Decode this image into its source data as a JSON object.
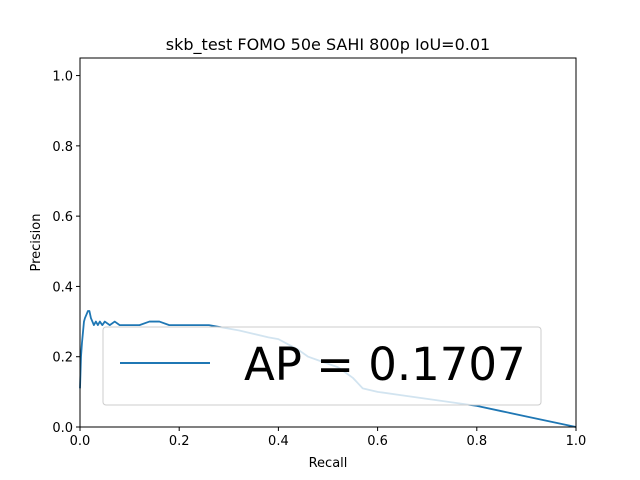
{
  "chart_data": {
    "type": "line",
    "title": "skb_test FOMO 50e SAHI 800p IoU=0.01",
    "xlabel": "Recall",
    "ylabel": "Precision",
    "xlim": [
      0.0,
      1.0
    ],
    "ylim": [
      0.0,
      1.05
    ],
    "x_ticks": [
      "0.0",
      "0.2",
      "0.4",
      "0.6",
      "0.8",
      "1.0"
    ],
    "y_ticks": [
      "0.0",
      "0.2",
      "0.4",
      "0.6",
      "0.8",
      "1.0"
    ],
    "grid": false,
    "legend_position": "lower right",
    "series": [
      {
        "name": "AP = 0.1707",
        "color": "#1f77b4",
        "x": [
          0.0,
          0.002,
          0.004,
          0.006,
          0.008,
          0.01,
          0.013,
          0.016,
          0.019,
          0.022,
          0.025,
          0.028,
          0.032,
          0.036,
          0.04,
          0.045,
          0.05,
          0.06,
          0.07,
          0.08,
          0.09,
          0.1,
          0.12,
          0.14,
          0.15,
          0.16,
          0.18,
          0.2,
          0.22,
          0.24,
          0.26,
          0.28,
          0.3,
          0.32,
          0.35,
          0.38,
          0.4,
          0.42,
          0.44,
          0.46,
          0.48,
          0.5,
          0.52,
          0.54,
          0.55,
          0.56,
          0.57,
          0.6,
          0.65,
          0.7,
          0.75,
          0.8,
          0.85,
          0.9,
          0.95,
          1.0
        ],
        "y": [
          0.11,
          0.2,
          0.24,
          0.27,
          0.3,
          0.31,
          0.32,
          0.33,
          0.33,
          0.31,
          0.3,
          0.29,
          0.3,
          0.29,
          0.3,
          0.29,
          0.3,
          0.29,
          0.3,
          0.29,
          0.29,
          0.29,
          0.29,
          0.3,
          0.3,
          0.3,
          0.29,
          0.29,
          0.29,
          0.29,
          0.29,
          0.285,
          0.28,
          0.275,
          0.265,
          0.255,
          0.25,
          0.235,
          0.22,
          0.2,
          0.19,
          0.18,
          0.17,
          0.15,
          0.14,
          0.125,
          0.11,
          0.1,
          0.09,
          0.08,
          0.07,
          0.06,
          0.045,
          0.03,
          0.015,
          0.0
        ]
      }
    ]
  }
}
